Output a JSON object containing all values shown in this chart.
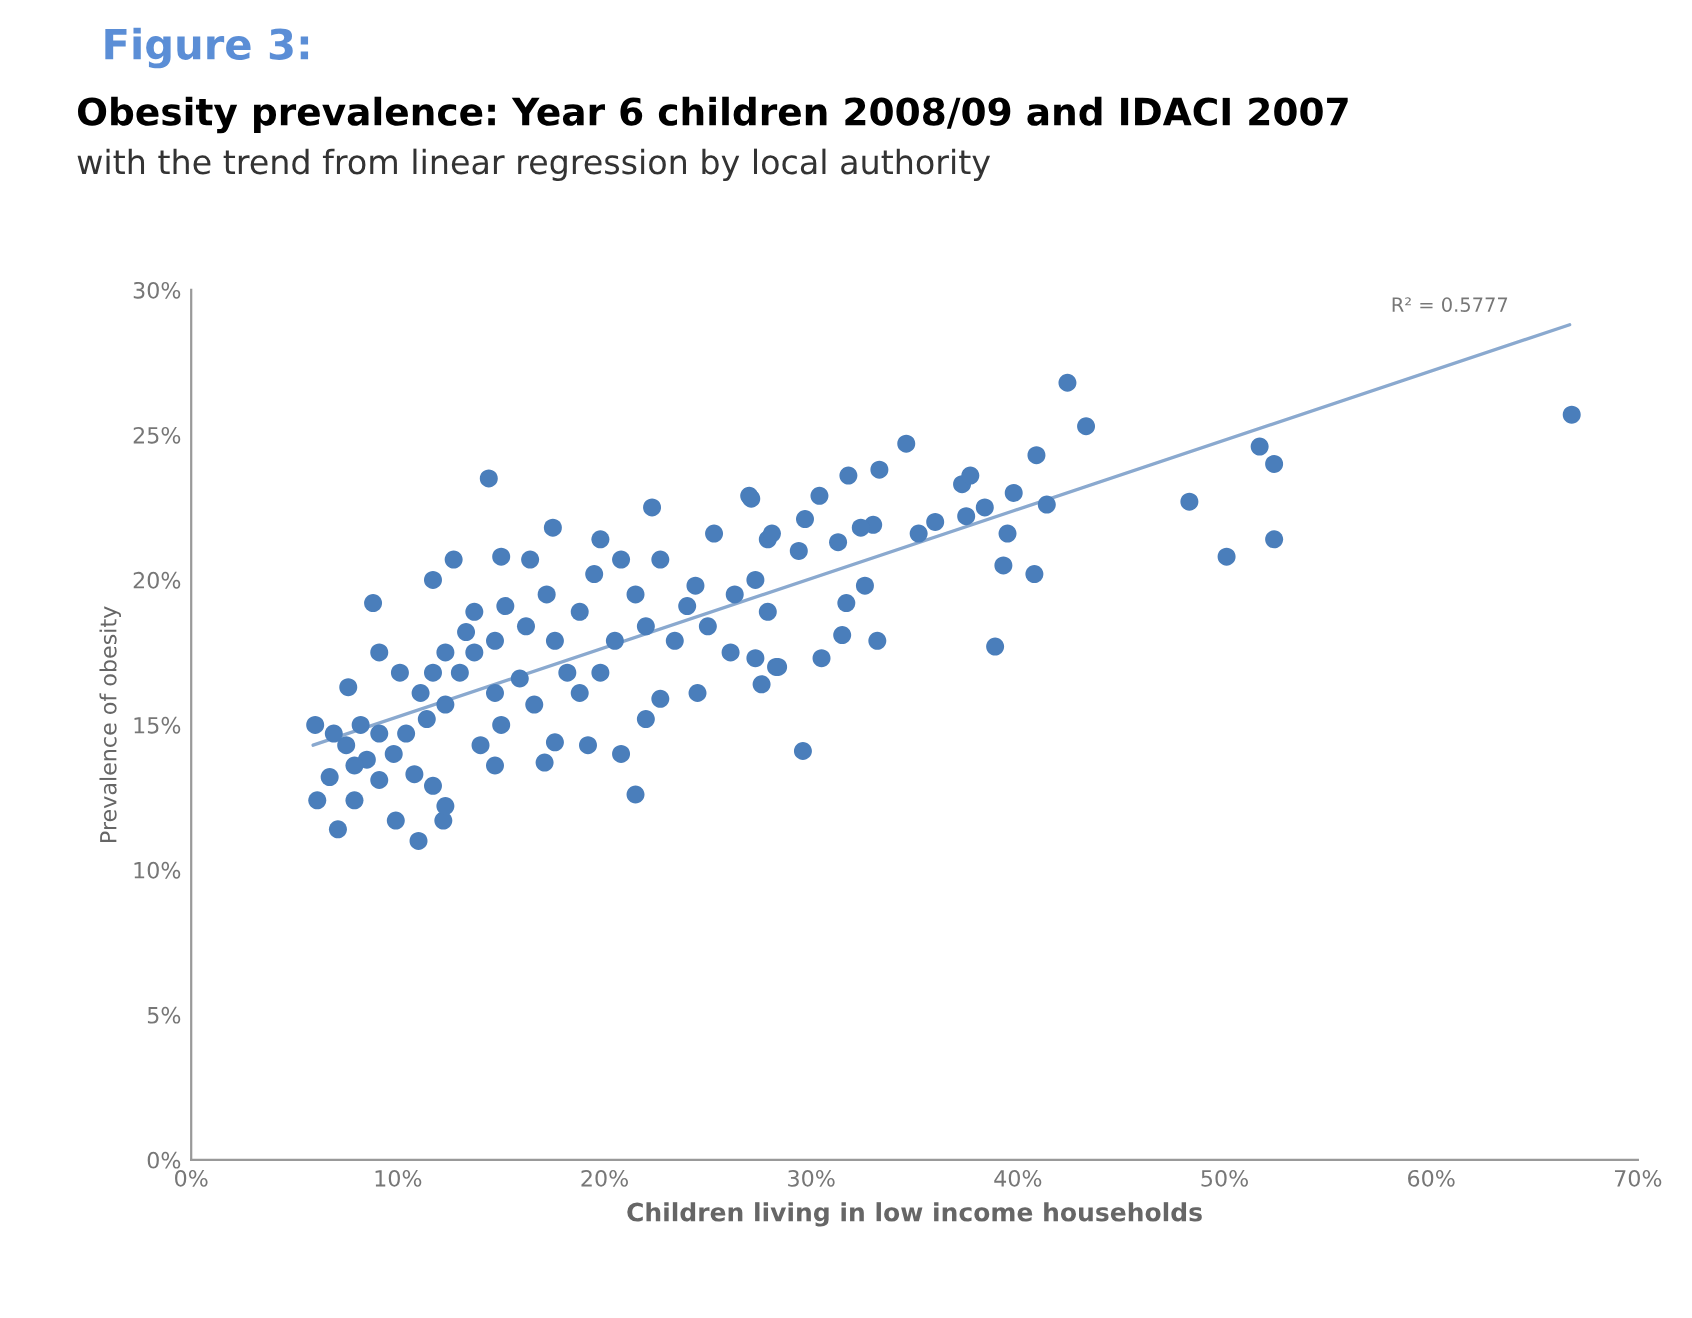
{
  "chart_data": {
    "type": "scatter",
    "title": "Obesity prevalence: Year 6 children 2008/09 and IDACI 2007",
    "subtitle": "with the trend from linear regression by local authority",
    "xlabel": "Children living in low income households",
    "ylabel": "Prevalence of obesity",
    "annotations": [
      "Figure 3:",
      "R² = 0.5777"
    ],
    "xlim": [
      0,
      70
    ],
    "ylim": [
      0,
      30
    ],
    "xticks": [
      {
        "value": 0,
        "label": "0%"
      },
      {
        "value": 10,
        "label": "10%"
      },
      {
        "value": 20,
        "label": "20%"
      },
      {
        "value": 30,
        "label": "30%"
      },
      {
        "value": 40,
        "label": "40%"
      },
      {
        "value": 50,
        "label": "50%"
      },
      {
        "value": 60,
        "label": "60%"
      },
      {
        "value": 70,
        "label": "70%"
      }
    ],
    "yticks": [
      {
        "value": 0,
        "label": "0%"
      },
      {
        "value": 5,
        "label": "5%"
      },
      {
        "value": 10,
        "label": "10%"
      },
      {
        "value": 15,
        "label": "15%"
      },
      {
        "value": 20,
        "label": "20%"
      },
      {
        "value": 25,
        "label": "25%"
      },
      {
        "value": 30,
        "label": "30%"
      }
    ],
    "grid": false,
    "legend": false,
    "marker": "circle",
    "series": [
      {
        "color": "#4a7ebb",
        "x": [
          14.4,
          8.8,
          11.7,
          12.7,
          15.0,
          16.4,
          17.5,
          19.8,
          22.3,
          27.0,
          7.6,
          6.0,
          6.7,
          6.1,
          7.1,
          11.0,
          9.9,
          12.2,
          12.3,
          7.9,
          17.1,
          19.2,
          20.8,
          21.5,
          17.6,
          22.0,
          22.7,
          24.5,
          26.1,
          27.3,
          27.6,
          28.3,
          24.0,
          25.3,
          27.9,
          9.1,
          10.1,
          11.1,
          8.2,
          9.1,
          8.5,
          9.8,
          10.8,
          11.7,
          9.1,
          10.4,
          11.4,
          12.3,
          13.0,
          13.7,
          14.7,
          13.3,
          13.7,
          15.2,
          16.2,
          17.2,
          17.6,
          15.9,
          16.6,
          15.0,
          14.7,
          14.0,
          18.8,
          19.5,
          20.8,
          21.5,
          22.0,
          22.7,
          20.5,
          19.8,
          18.8,
          18.2,
          23.4,
          24.4,
          25.0,
          26.3,
          27.3,
          27.9,
          12.3,
          11.7,
          14.7,
          7.5,
          6.9,
          7.9,
          42.4,
          43.3,
          34.6,
          31.8,
          33.3,
          30.4,
          27.1,
          40.9,
          39.8,
          41.4,
          37.3,
          37.7,
          38.4,
          37.5,
          36.0,
          35.2,
          33.0,
          32.4,
          31.3,
          29.4,
          29.7,
          28.1,
          39.5,
          39.3,
          40.8,
          38.9,
          48.3,
          50.1,
          51.7,
          52.4,
          52.4,
          66.8,
          32.6,
          31.7,
          31.5,
          33.2,
          30.5,
          28.4,
          29.6
        ],
        "values": [
          23.5,
          19.2,
          20.0,
          20.7,
          20.8,
          20.7,
          21.8,
          21.4,
          22.5,
          22.9,
          16.3,
          15.0,
          13.2,
          12.4,
          11.4,
          11.0,
          11.7,
          11.7,
          12.2,
          12.4,
          13.7,
          14.3,
          14.0,
          12.6,
          14.4,
          15.2,
          15.9,
          16.1,
          17.5,
          17.3,
          16.4,
          17.0,
          19.1,
          21.6,
          21.4,
          17.5,
          16.8,
          16.1,
          15.0,
          14.7,
          13.8,
          14.0,
          13.3,
          12.9,
          13.1,
          14.7,
          15.2,
          15.7,
          16.8,
          17.5,
          17.9,
          18.2,
          18.9,
          19.1,
          18.4,
          19.5,
          17.9,
          16.6,
          15.7,
          15.0,
          13.6,
          14.3,
          18.9,
          20.2,
          20.7,
          19.5,
          18.4,
          20.7,
          17.9,
          16.8,
          16.1,
          16.8,
          17.9,
          19.8,
          18.4,
          19.5,
          20.0,
          18.9,
          17.5,
          16.8,
          16.1,
          14.3,
          14.7,
          13.6,
          26.8,
          25.3,
          24.7,
          23.6,
          23.8,
          22.9,
          22.8,
          24.3,
          23.0,
          22.6,
          23.3,
          23.6,
          22.5,
          22.2,
          22.0,
          21.6,
          21.9,
          21.8,
          21.3,
          21.0,
          22.1,
          21.6,
          21.6,
          20.5,
          20.2,
          17.7,
          22.7,
          20.8,
          24.6,
          24.0,
          21.4,
          25.7,
          19.8,
          19.2,
          18.1,
          17.9,
          17.3,
          17.0,
          14.1
        ]
      },
      {
        "type": "line",
        "color": "#8aa9cf",
        "marker": "none",
        "line_style": "solid",
        "x": [
          5.9,
          66.7
        ],
        "values": [
          14.3,
          28.8
        ]
      }
    ]
  }
}
